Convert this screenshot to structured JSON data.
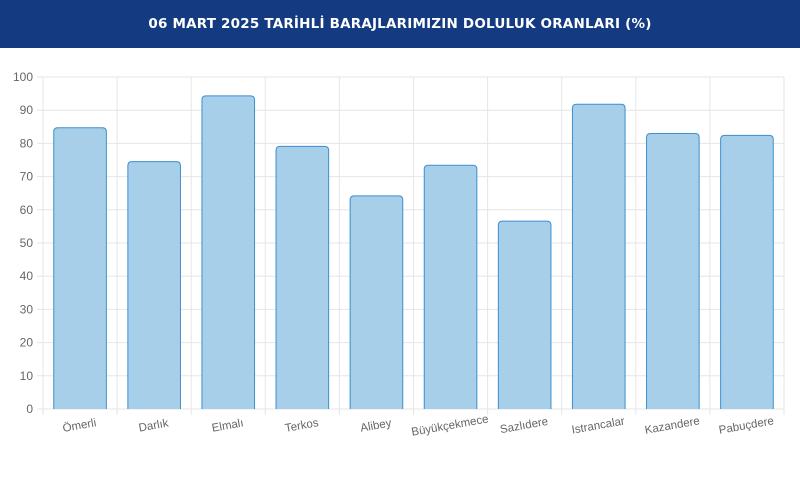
{
  "header": {
    "title": "06 MART 2025 TARİHLİ BARAJLARIMIZIN DOLULUK ORANLARI (%)"
  },
  "colors": {
    "header_bg": "#143a82",
    "bar_fill": "#a7cfea",
    "bar_stroke": "#3d8fcf",
    "grid": "#e6e6e6",
    "tick_text": "#666666"
  },
  "chart_data": {
    "type": "bar",
    "title": "",
    "xlabel": "",
    "ylabel": "",
    "categories": [
      "Ömerli",
      "Darlık",
      "Elmalı",
      "Terkos",
      "Alibey",
      "Büyükçekmece",
      "Sazlıdere",
      "Istrancalar",
      "Kazandere",
      "Pabuçdere"
    ],
    "values": [
      84.7,
      74.5,
      94.3,
      79.1,
      64.2,
      73.4,
      56.6,
      91.8,
      83.0,
      82.4
    ],
    "ylim": [
      0,
      100
    ],
    "yticks": [
      0,
      10,
      20,
      30,
      40,
      50,
      60,
      70,
      80,
      90,
      100
    ],
    "grid": true,
    "legend": "none"
  }
}
